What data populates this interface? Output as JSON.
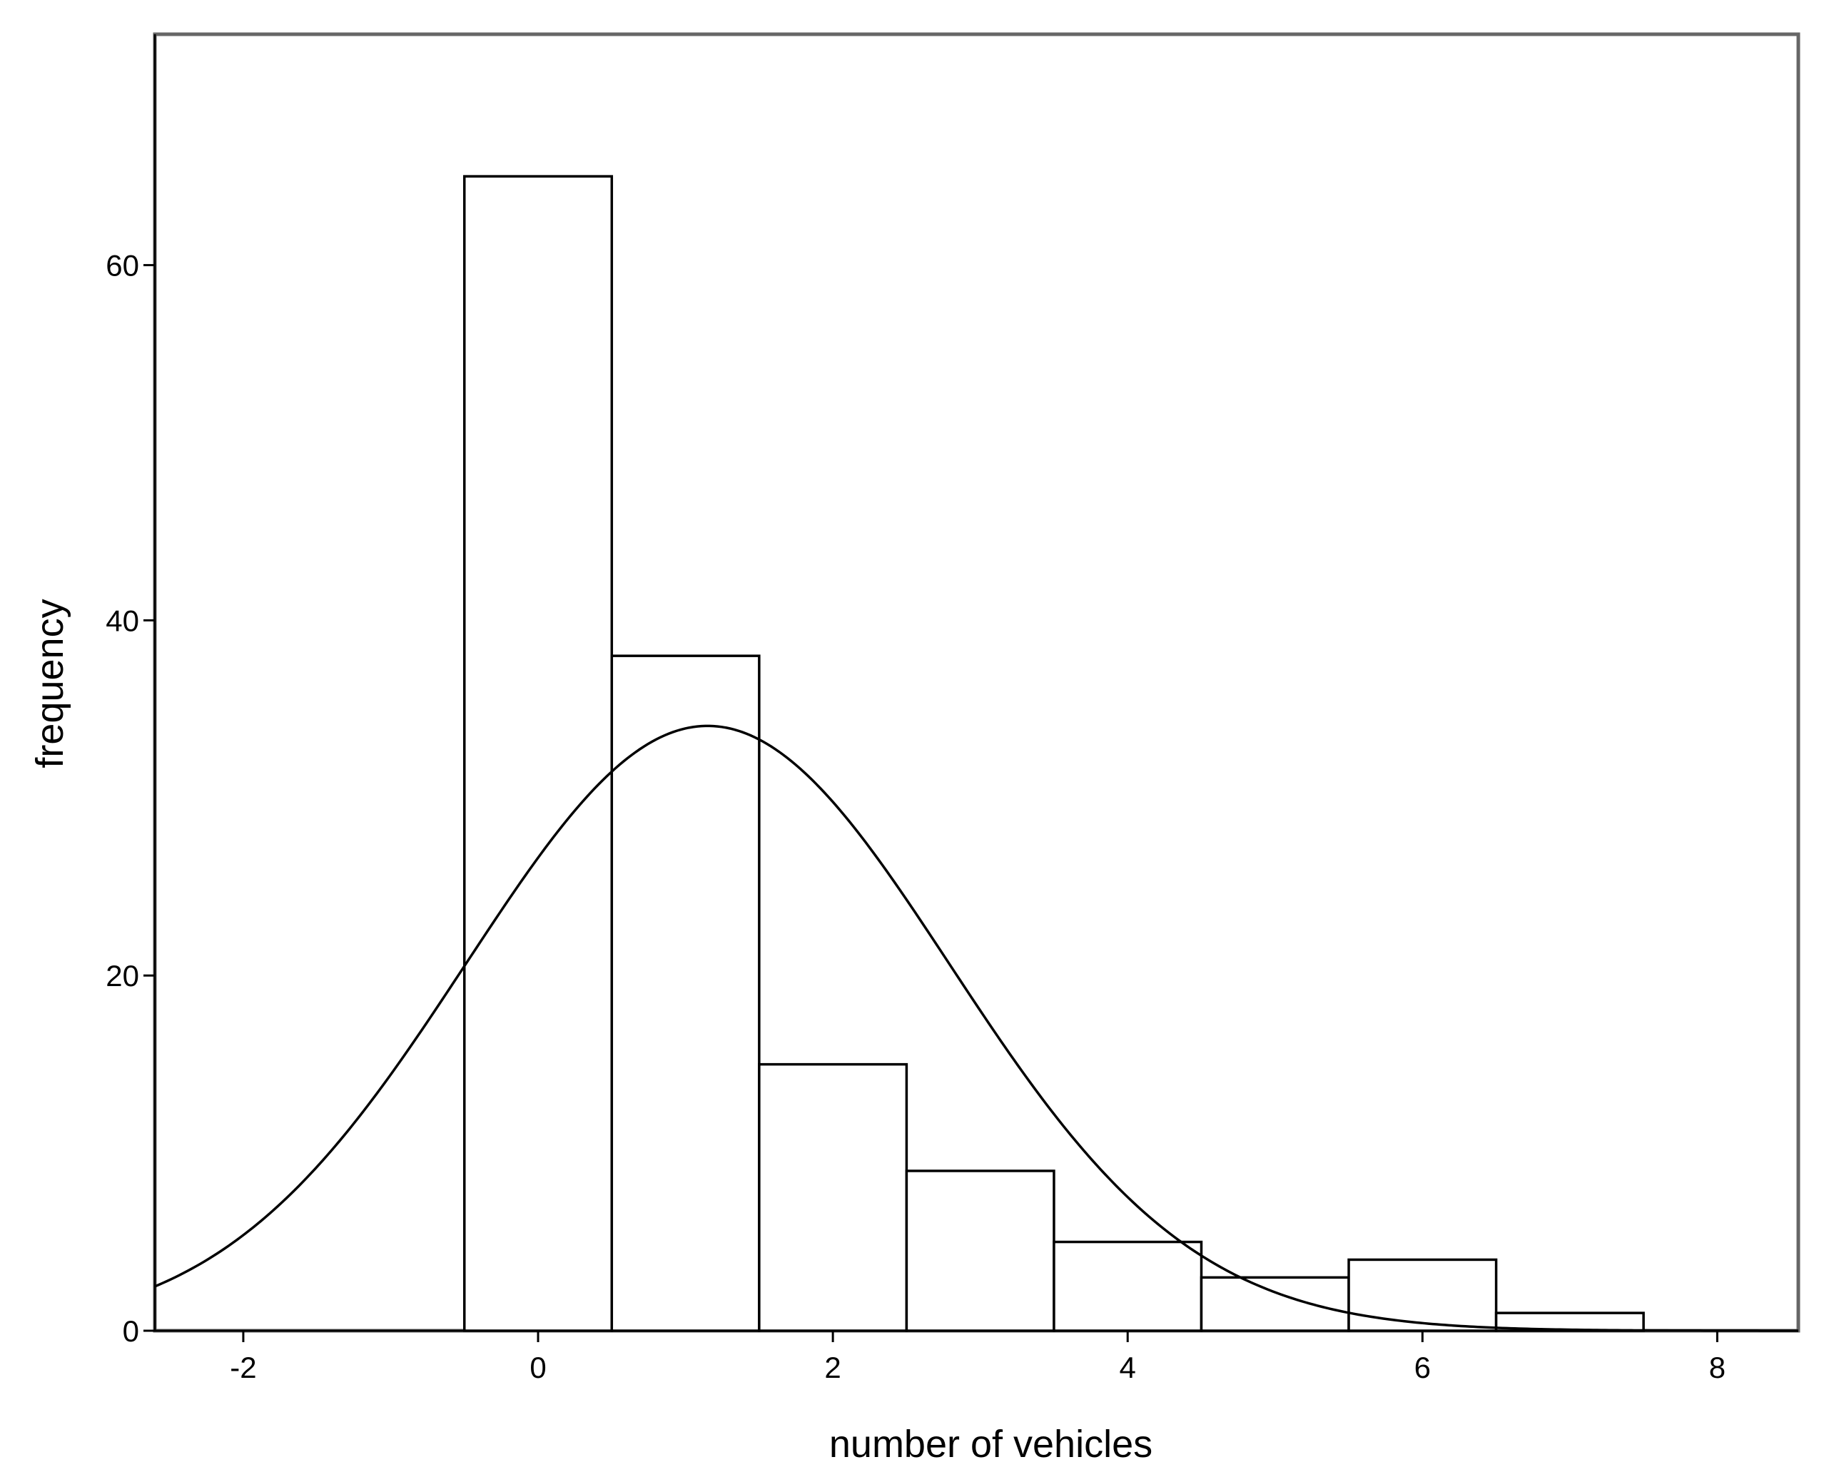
{
  "chart_data": {
    "type": "bar",
    "subtype": "histogram",
    "xlabel": "number of vehicles",
    "ylabel": "frequency",
    "xlim": [
      -2.6,
      8.55
    ],
    "ylim": [
      0,
      73
    ],
    "xticks": [
      -2,
      0,
      2,
      4,
      6,
      8
    ],
    "yticks": [
      0,
      20,
      40,
      60
    ],
    "grid": false,
    "bin_width": 1,
    "bins": [
      {
        "center": 0,
        "count": 65
      },
      {
        "center": 1,
        "count": 38
      },
      {
        "center": 2,
        "count": 15
      },
      {
        "center": 3,
        "count": 9
      },
      {
        "center": 4,
        "count": 5
      },
      {
        "center": 5,
        "count": 3
      },
      {
        "center": 6,
        "count": 4
      },
      {
        "center": 7,
        "count": 1
      },
      {
        "center": 8,
        "count": 0
      }
    ],
    "normal_curve": {
      "mean": 1.15,
      "std_dev": 1.64,
      "n": 140
    },
    "colors": {
      "bar_fill": "#ffffff",
      "bar_stroke": "#000000",
      "curve": "#000000",
      "frame": "#666666"
    }
  }
}
